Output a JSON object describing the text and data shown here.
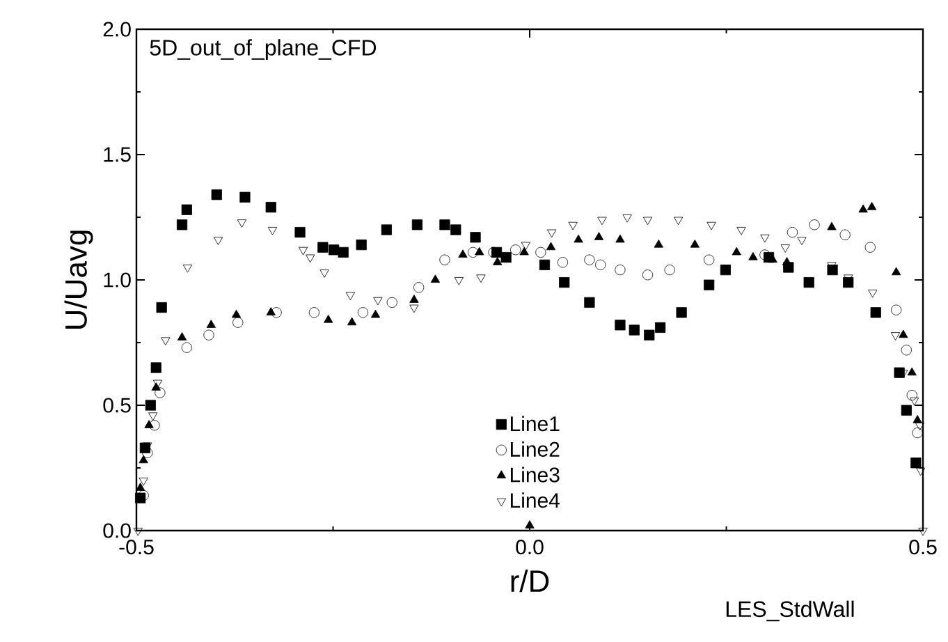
{
  "chart_data": {
    "type": "scatter",
    "title": "5D_out_of_plane_CFD",
    "xlabel": "r/D",
    "ylabel": "U/Uavg",
    "annotations": [
      "LES_StdWall"
    ],
    "xlim": [
      -0.5,
      0.5
    ],
    "ylim": [
      0.0,
      2.0
    ],
    "xticks": [
      {
        "value": -0.5,
        "label": "-0.5"
      },
      {
        "value": 0.0,
        "label": "0.0"
      },
      {
        "value": 0.5,
        "label": "0.5"
      }
    ],
    "yticks": [
      {
        "value": 0.0,
        "label": "0.0"
      },
      {
        "value": 0.5,
        "label": "0.5"
      },
      {
        "value": 1.0,
        "label": "1.0"
      },
      {
        "value": 1.5,
        "label": "1.5"
      },
      {
        "value": 2.0,
        "label": "2.0"
      }
    ],
    "legend": "bottom",
    "series": [
      {
        "name": "Line1",
        "color": "#000000",
        "marker": "square",
        "x": [
          -0.495,
          -0.489,
          -0.482,
          -0.475,
          -0.468,
          -0.442,
          -0.436,
          -0.398,
          -0.362,
          -0.329,
          -0.292,
          -0.263,
          -0.249,
          -0.237,
          -0.214,
          -0.182,
          -0.143,
          -0.108,
          -0.094,
          -0.069,
          -0.042,
          -0.03,
          0.019,
          0.044,
          0.076,
          0.115,
          0.133,
          0.152,
          0.166,
          0.193,
          0.228,
          0.249,
          0.304,
          0.329,
          0.355,
          0.385,
          0.405,
          0.44,
          0.47,
          0.479,
          0.491
        ],
        "values": [
          0.13,
          0.33,
          0.5,
          0.65,
          0.89,
          1.22,
          1.28,
          1.34,
          1.33,
          1.29,
          1.19,
          1.13,
          1.12,
          1.11,
          1.14,
          1.2,
          1.22,
          1.22,
          1.2,
          1.17,
          1.11,
          1.09,
          1.06,
          0.99,
          0.91,
          0.82,
          0.8,
          0.78,
          0.81,
          0.87,
          0.98,
          1.04,
          1.09,
          1.05,
          0.99,
          1.04,
          0.99,
          0.87,
          0.63,
          0.48,
          0.27
        ]
      },
      {
        "name": "Line2",
        "color": "#000000",
        "marker": "circle",
        "x": [
          -0.491,
          -0.486,
          -0.477,
          -0.47,
          -0.436,
          -0.408,
          -0.371,
          -0.322,
          -0.274,
          -0.212,
          -0.175,
          -0.141,
          -0.108,
          -0.072,
          -0.046,
          -0.018,
          0.014,
          0.042,
          0.076,
          0.09,
          0.115,
          0.15,
          0.178,
          0.228,
          0.299,
          0.334,
          0.362,
          0.401,
          0.433,
          0.466,
          0.479,
          0.486,
          0.493
        ],
        "values": [
          0.14,
          0.31,
          0.42,
          0.55,
          0.73,
          0.78,
          0.83,
          0.87,
          0.87,
          0.87,
          0.91,
          0.97,
          1.08,
          1.11,
          1.11,
          1.12,
          1.11,
          1.07,
          1.08,
          1.06,
          1.04,
          1.02,
          1.04,
          1.08,
          1.1,
          1.19,
          1.22,
          1.18,
          1.13,
          0.88,
          0.72,
          0.54,
          0.39
        ]
      },
      {
        "name": "Line3",
        "color": "#000000",
        "marker": "triangle",
        "x": [
          -0.495,
          -0.491,
          -0.484,
          -0.475,
          -0.442,
          -0.405,
          -0.373,
          -0.329,
          -0.256,
          -0.226,
          -0.196,
          -0.147,
          -0.12,
          -0.085,
          -0.064,
          -0.041,
          -0.007,
          0.0,
          0.027,
          0.062,
          0.088,
          0.115,
          0.164,
          0.21,
          0.263,
          0.284,
          0.309,
          0.327,
          0.384,
          0.424,
          0.435,
          0.466,
          0.475,
          0.486,
          0.493
        ],
        "values": [
          0.17,
          0.28,
          0.42,
          0.57,
          0.77,
          0.82,
          0.86,
          0.87,
          0.84,
          0.83,
          0.86,
          0.92,
          1.0,
          1.1,
          1.11,
          1.07,
          1.11,
          0.02,
          1.13,
          1.16,
          1.17,
          1.16,
          1.14,
          1.14,
          1.11,
          1.09,
          1.08,
          1.07,
          1.21,
          1.28,
          1.29,
          1.03,
          0.78,
          0.63,
          0.44
        ]
      },
      {
        "name": "Line4",
        "color": "#000000",
        "marker": "triangle-down",
        "x": [
          -0.498,
          -0.491,
          -0.486,
          -0.479,
          -0.473,
          -0.463,
          -0.435,
          -0.396,
          -0.366,
          -0.327,
          -0.288,
          -0.279,
          -0.261,
          -0.228,
          -0.193,
          -0.147,
          -0.09,
          -0.062,
          -0.005,
          0.028,
          0.055,
          0.092,
          0.124,
          0.15,
          0.189,
          0.231,
          0.269,
          0.299,
          0.325,
          0.346,
          0.384,
          0.405,
          0.436,
          0.465,
          0.475,
          0.489,
          0.496,
          0.497,
          0.5
        ],
        "values": [
          0.0,
          0.2,
          0.34,
          0.46,
          0.59,
          0.76,
          1.05,
          1.16,
          1.23,
          1.2,
          1.12,
          1.09,
          1.03,
          0.94,
          0.92,
          0.89,
          1.0,
          1.01,
          1.14,
          1.19,
          1.22,
          1.24,
          1.25,
          1.24,
          1.24,
          1.22,
          1.2,
          1.17,
          1.13,
          1.16,
          1.06,
          1.01,
          0.95,
          0.78,
          0.63,
          0.52,
          0.42,
          0.24,
          0.0
        ]
      }
    ]
  }
}
